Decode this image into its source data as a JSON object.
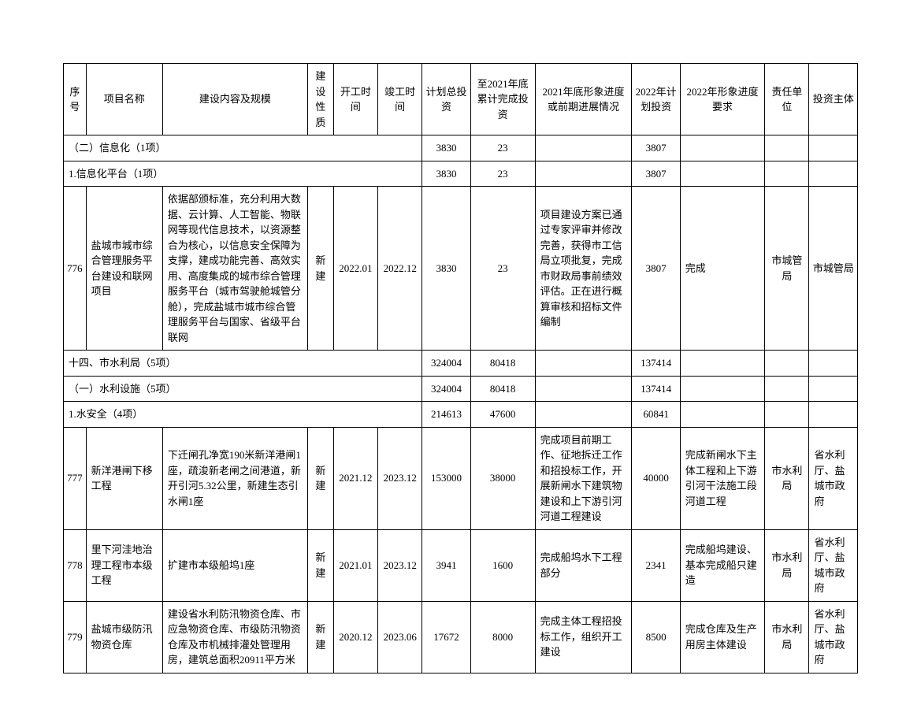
{
  "headers": {
    "num": "序号",
    "name": "项目名称",
    "content": "建设内容及规模",
    "nature": "建设性质",
    "start": "开工时间",
    "end": "竣工时间",
    "total": "计划总投资",
    "cumul": "至2021年底累计完成投资",
    "progress2021": "2021年底形象进度或前期进展情况",
    "plan2022": "2022年计划投资",
    "req2022": "2022年形象进度要求",
    "unit": "责任单位",
    "investor": "投资主体"
  },
  "sections": {
    "s1": {
      "title": "（二）信息化（1项）",
      "total": "3830",
      "cumul": "23",
      "plan2022": "3807"
    },
    "s2": {
      "title": "1.信息化平台（1项）",
      "total": "3830",
      "cumul": "23",
      "plan2022": "3807"
    },
    "s3": {
      "title": "十四、市水利局（5项）",
      "total": "324004",
      "cumul": "80418",
      "plan2022": "137414"
    },
    "s4": {
      "title": "（一）水利设施（5项）",
      "total": "324004",
      "cumul": "80418",
      "plan2022": "137414"
    },
    "s5": {
      "title": "1.水安全（4项）",
      "total": "214613",
      "cumul": "47600",
      "plan2022": "60841"
    }
  },
  "rows": [
    {
      "num": "776",
      "name": "盐城市城市综合管理服务平台建设和联网项目",
      "content": "依据部颁标准，充分利用大数据、云计算、人工智能、物联网等现代信息技术，以资源整合为核心，以信息安全保障为支撑，建成功能完善、高效实用、高度集成的城市综合管理服务平台（城市驾驶舱城管分舱），完成盐城市城市综合管理服务平台与国家、省级平台联网",
      "nature": "新建",
      "start": "2022.01",
      "end": "2022.12",
      "total": "3830",
      "cumul": "23",
      "progress2021": "项目建设方案已通过专家评审并修改完善，获得市工信局立项批复，完成市财政局事前绩效评估。正在进行概算审核和招标文件编制",
      "plan2022": "3807",
      "req2022": "完成",
      "unit": "市城管局",
      "investor": "市城管局"
    },
    {
      "num": "777",
      "name": "新洋港闸下移工程",
      "content": "下迁闸孔净宽190米新洋港闸1座，疏浚新老闸之间港道，新开引河5.32公里，新建生态引水闸1座",
      "nature": "新建",
      "start": "2021.12",
      "end": "2023.12",
      "total": "153000",
      "cumul": "38000",
      "progress2021": "完成项目前期工作、征地拆迁工作和招投标工作，开展新闸水下建筑物建设和上下游引河河道工程建设",
      "plan2022": "40000",
      "req2022": "完成新闸水下主体工程和上下游引河干法施工段河道工程",
      "unit": "市水利局",
      "investor": "省水利厅、盐城市政府"
    },
    {
      "num": "778",
      "name": "里下河洼地治理工程市本级工程",
      "content": "扩建市本级船坞1座",
      "nature": "新建",
      "start": "2021.01",
      "end": "2023.12",
      "total": "3941",
      "cumul": "1600",
      "progress2021": "完成船坞水下工程部分",
      "plan2022": "2341",
      "req2022": "完成船坞建设、基本完成船只建造",
      "unit": "市水利局",
      "investor": "省水利厅、盐城市政府"
    },
    {
      "num": "779",
      "name": "盐城市级防汛物资仓库",
      "content": "建设省水利防汛物资仓库、市应急物资仓库、市级防汛物资仓库及市机械排灌处管理用房，建筑总面积20911平方米",
      "nature": "新建",
      "start": "2020.12",
      "end": "2023.06",
      "total": "17672",
      "cumul": "8000",
      "progress2021": "完成主体工程招投标工作，组织开工建设",
      "plan2022": "8500",
      "req2022": "完成仓库及生产用房主体建设",
      "unit": "市水利局",
      "investor": "省水利厅、盐城市政府"
    }
  ]
}
